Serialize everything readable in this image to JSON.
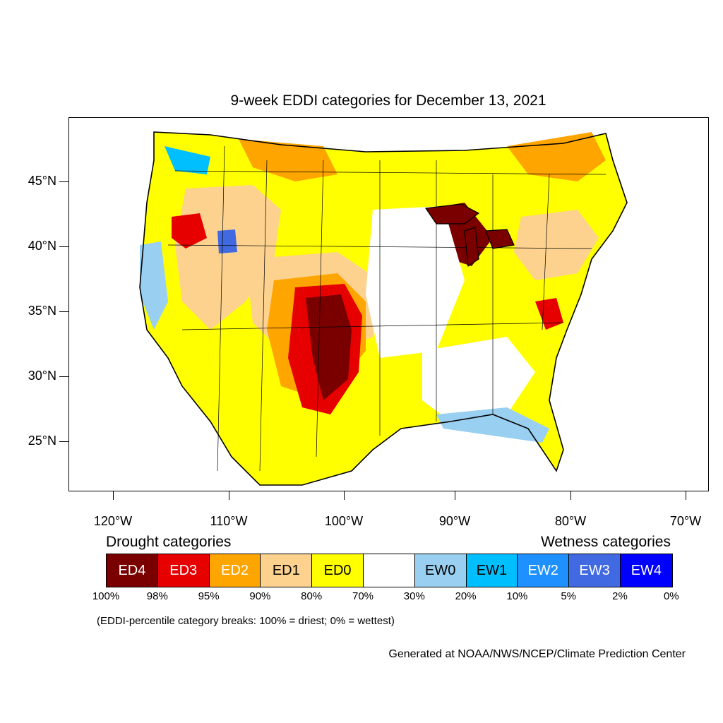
{
  "title": "9-week EDDI categories for December 13, 2021",
  "lat_labels": [
    "45°N",
    "40°N",
    "35°N",
    "30°N",
    "25°N"
  ],
  "lon_labels": [
    "120°W",
    "110°W",
    "100°W",
    "90°W",
    "80°W",
    "70°W"
  ],
  "legend": {
    "drought_heading": "Drought categories",
    "wetness_heading": "Wetness categories",
    "categories": [
      {
        "label": "ED4",
        "color": "#7a0000",
        "text_color": "#ffffff"
      },
      {
        "label": "ED3",
        "color": "#e60000",
        "text_color": "#ffffff"
      },
      {
        "label": "ED2",
        "color": "#ffa500",
        "text_color": "#ffffff"
      },
      {
        "label": "ED1",
        "color": "#fcd28e",
        "text_color": "#000000"
      },
      {
        "label": "ED0",
        "color": "#ffff00",
        "text_color": "#000000"
      },
      {
        "label": "",
        "color": "#ffffff",
        "text_color": "#000000"
      },
      {
        "label": "EW0",
        "color": "#99cff0",
        "text_color": "#000000"
      },
      {
        "label": "EW1",
        "color": "#00bfff",
        "text_color": "#000000"
      },
      {
        "label": "EW2",
        "color": "#1e90ff",
        "text_color": "#ffffff"
      },
      {
        "label": "EW3",
        "color": "#4169e1",
        "text_color": "#ffffff"
      },
      {
        "label": "EW4",
        "color": "#0000ff",
        "text_color": "#ffffff"
      }
    ],
    "percentiles": [
      "100%",
      "98%",
      "95%",
      "90%",
      "80%",
      "70%",
      "30%",
      "20%",
      "10%",
      "5%",
      "2%",
      "0%"
    ]
  },
  "note": "(EDDI-percentile category breaks: 100% = driest; 0% = wettest)",
  "credit": "Generated at NOAA/NWS/NCEP/Climate Prediction Center"
}
